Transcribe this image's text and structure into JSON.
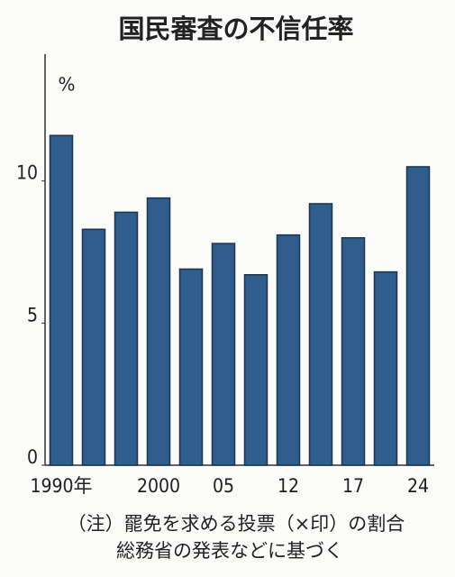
{
  "chart_data": {
    "type": "bar",
    "title": "国民審査の不信任率",
    "unit": "%",
    "categories": [
      "1990年",
      null,
      null,
      "2000",
      null,
      "05",
      null,
      "12",
      null,
      "17",
      null,
      "24"
    ],
    "values": [
      11.6,
      8.3,
      8.9,
      9.4,
      6.9,
      7.8,
      6.7,
      8.1,
      9.2,
      8.0,
      6.8,
      10.5
    ],
    "color": "#2f5d8c",
    "ylim": [
      0,
      14.4
    ],
    "yticks": [
      0,
      5,
      10
    ],
    "grid": false,
    "notes": [
      "（注）罷免を求める投票（×印）の割合",
      "総務省の発表などに基づく"
    ]
  }
}
